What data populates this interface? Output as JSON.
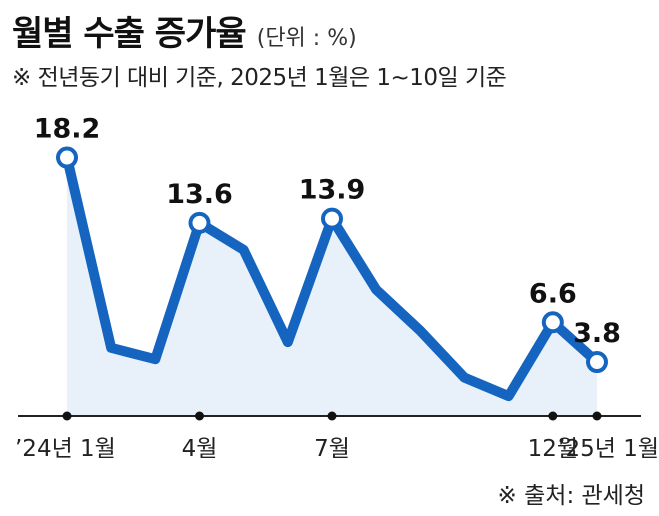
{
  "header": {
    "title": "월별 수출 증가율",
    "unit": "(단위 : %)",
    "note": "※ 전년동기 대비 기준, 2025년 1월은 1~10일 기준"
  },
  "footer": {
    "source": "※ 출처: 관세청"
  },
  "chart_data": {
    "type": "line",
    "title": "월별 수출 증가율",
    "x": [
      "2024-01",
      "2024-02",
      "2024-03",
      "2024-04",
      "2024-05",
      "2024-06",
      "2024-07",
      "2024-08",
      "2024-09",
      "2024-10",
      "2024-11",
      "2024-12",
      "2025-01"
    ],
    "values": [
      18.2,
      4.8,
      4.0,
      13.6,
      11.7,
      5.2,
      13.9,
      8.9,
      6.0,
      2.7,
      1.4,
      6.6,
      3.8
    ],
    "value_labels": [
      "18.2",
      "",
      "",
      "13.6",
      "",
      "",
      "13.9",
      "",
      "",
      "",
      "",
      "6.6",
      "3.8"
    ],
    "tick_labels": [
      "’24년 1월",
      "",
      "",
      "4월",
      "",
      "",
      "7월",
      "",
      "",
      "",
      "",
      "12월",
      "’25년 1월"
    ],
    "ylim": [
      0,
      20
    ],
    "grid": false,
    "colors": {
      "line": "#1565c0",
      "area": "#e8f1fa",
      "baseline": "#222222"
    }
  }
}
